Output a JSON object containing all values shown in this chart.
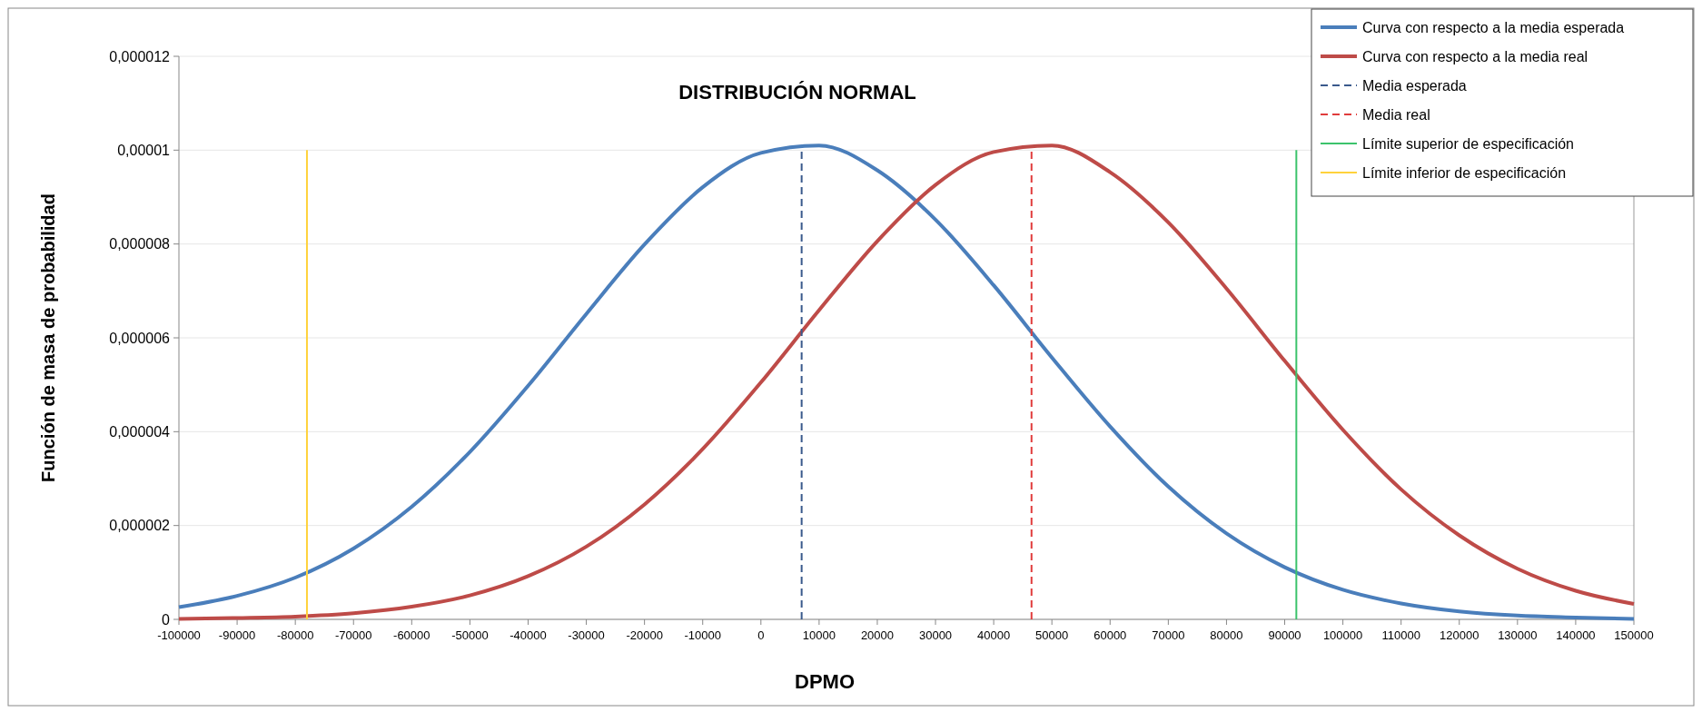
{
  "chart_data": {
    "type": "line",
    "title": "DISTRIBUCIÓN  NORMAL",
    "xlabel": "DPMO",
    "ylabel": "Función  de masa de probabilidad",
    "x": [
      -100000,
      -90000,
      -80000,
      -70000,
      -60000,
      -50000,
      -40000,
      -30000,
      -20000,
      -10000,
      0,
      10000,
      20000,
      30000,
      40000,
      50000,
      60000,
      70000,
      80000,
      90000,
      100000,
      110000,
      120000,
      130000,
      140000,
      150000
    ],
    "series": [
      {
        "name": "Curva con respecto a la media esperada",
        "color": "#4a7ebb",
        "values": [
          2.6e-07,
          5e-07,
          8.9e-07,
          1.51e-06,
          2.4e-06,
          3.57e-06,
          4.98e-06,
          6.51e-06,
          7.99e-06,
          9.21e-06,
          9.94e-06,
          1.01e-05,
          9.57e-06,
          8.52e-06,
          7.12e-06,
          5.58e-06,
          4.11e-06,
          2.83e-06,
          1.83e-06,
          1.11e-06,
          6.3e-07,
          3.4e-07,
          1.7e-07,
          8e-08,
          4e-08,
          1e-08
        ]
      },
      {
        "name": "Curva con respecto a la media real",
        "color": "#be4b48",
        "values": [
          1e-08,
          3e-08,
          6e-08,
          1.3e-07,
          2.7e-07,
          5.1e-07,
          9.2e-07,
          1.55e-06,
          2.45e-06,
          3.63e-06,
          5.05e-06,
          6.59e-06,
          8.06e-06,
          9.26e-06,
          9.96e-06,
          1.01e-05,
          9.53e-06,
          8.46e-06,
          7.05e-06,
          5.51e-06,
          4.04e-06,
          2.77e-06,
          1.79e-06,
          1.08e-06,
          6.1e-07,
          3.3e-07
        ]
      },
      {
        "name": "Media esperada",
        "color": "#3a5a8c",
        "line_style": "dashed",
        "x": [
          7000,
          7000
        ],
        "values": [
          0,
          1e-05
        ]
      },
      {
        "name": "Media real",
        "color": "#e03c3c",
        "line_style": "dashed",
        "x": [
          46500,
          46500
        ],
        "values": [
          0,
          1e-05
        ]
      },
      {
        "name": "Límite superior de especificación",
        "color": "#3cc36c",
        "x": [
          92000,
          92000
        ],
        "values": [
          0,
          1e-05
        ]
      },
      {
        "name": "Límite inferior de especificación",
        "color": "#ffd23c",
        "x": [
          -78000,
          -78000
        ],
        "values": [
          0,
          1e-05
        ]
      }
    ],
    "xlim": [
      -100000,
      150000
    ],
    "xticks": [
      -100000,
      -90000,
      -80000,
      -70000,
      -60000,
      -50000,
      -40000,
      -30000,
      -20000,
      -10000,
      0,
      10000,
      20000,
      30000,
      40000,
      50000,
      60000,
      70000,
      80000,
      90000,
      100000,
      110000,
      120000,
      130000,
      140000,
      150000
    ],
    "ylim": [
      0,
      1.2e-05
    ],
    "yticks": [
      0,
      {
        "value": 2e-06,
        "label": "0,000002"
      },
      {
        "value": 4e-06,
        "label": "0,000004"
      },
      {
        "value": 6e-06,
        "label": "0,000006"
      },
      {
        "value": 8e-06,
        "label": "0,000008"
      },
      {
        "value": 1e-05,
        "label": "0,00001"
      },
      {
        "value": 1.2e-05,
        "label": "0,000012"
      }
    ],
    "grid": "y",
    "legend": "top right"
  }
}
